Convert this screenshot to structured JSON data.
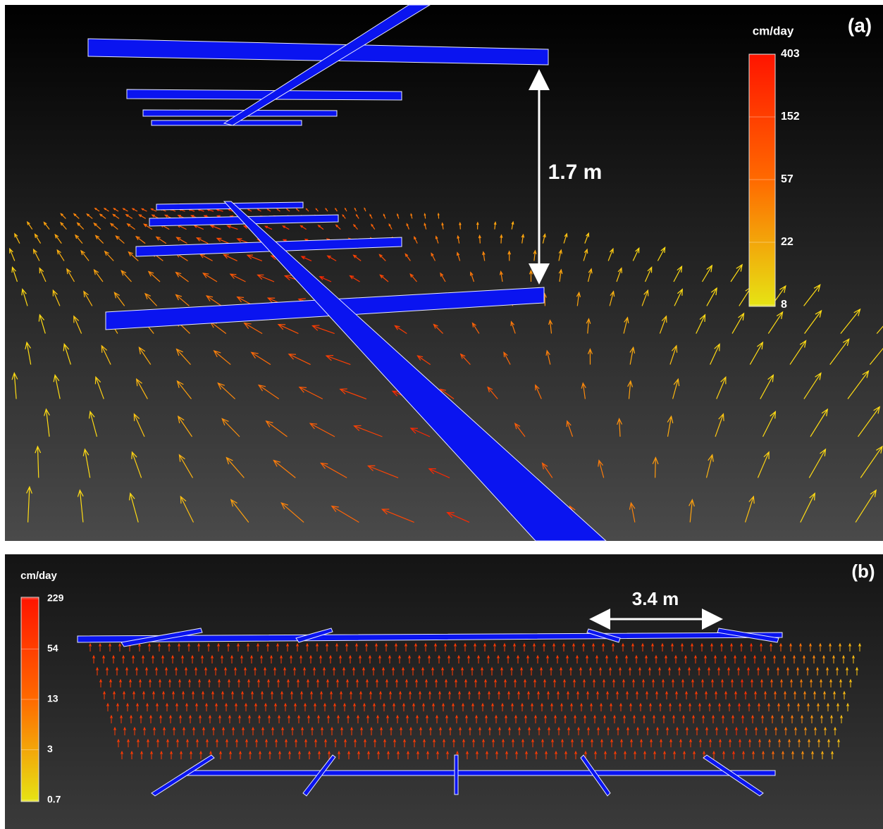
{
  "panel_a": {
    "label": "(a)",
    "colorbar": {
      "title": "cm/day",
      "ticks": [
        403,
        152,
        57,
        22,
        8
      ]
    },
    "annotation": "1.7 m"
  },
  "panel_b": {
    "label": "(b)",
    "colorbar": {
      "title": "cm/day",
      "ticks": [
        229,
        54,
        13,
        3,
        0.7
      ]
    },
    "annotation": "3.4 m"
  }
}
